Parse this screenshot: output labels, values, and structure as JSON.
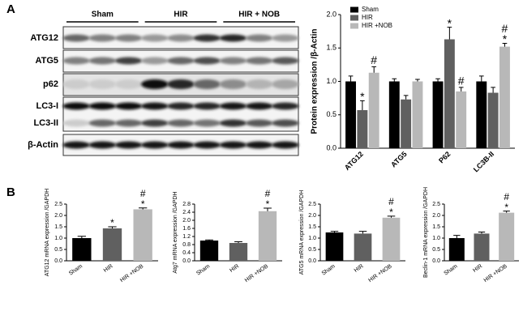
{
  "panel_labels": [
    "A",
    "B"
  ],
  "blot": {
    "groups": [
      "Sham",
      "HIR",
      "HIR + NOB"
    ],
    "rows": [
      "ATG12",
      "ATG5",
      "p62",
      "LC3-I",
      "LC3-II",
      "β-Actin"
    ]
  },
  "chart_data": [
    {
      "type": "grouped-bar",
      "ylabel": "Protein expression /β-Actin",
      "categories": [
        "ATG12",
        "ATG5",
        "P62",
        "LC3B-II"
      ],
      "series": [
        {
          "name": "Sham",
          "color": "#000000",
          "values": [
            1.0,
            1.0,
            1.0,
            1.0
          ],
          "errors": [
            0.08,
            0.04,
            0.04,
            0.08
          ]
        },
        {
          "name": "HIR",
          "color": "#606060",
          "values": [
            0.57,
            0.73,
            1.63,
            0.83
          ],
          "errors": [
            0.14,
            0.06,
            0.18,
            0.08
          ]
        },
        {
          "name": "HIR +NOB",
          "color": "#b8b8b8",
          "values": [
            1.13,
            1.0,
            0.85,
            1.52
          ],
          "errors": [
            0.09,
            0.03,
            0.06,
            0.05
          ]
        }
      ],
      "ylim": [
        0,
        2.0
      ],
      "yticks": [
        {
          "value": 0,
          "label": "0.0"
        },
        0.5,
        {
          "value": 1,
          "label": "1.0"
        },
        1.5,
        {
          "value": 2,
          "label": "2.0"
        }
      ],
      "legend": "top-left",
      "annotations": [
        {
          "category": "ATG12",
          "series": "HIR",
          "text": "*"
        },
        {
          "category": "ATG12",
          "series": "HIR +NOB",
          "text": "#"
        },
        {
          "category": "P62",
          "series": "HIR",
          "text": "*"
        },
        {
          "category": "P62",
          "series": "HIR +NOB",
          "text": "#"
        },
        {
          "category": "LC3B-II",
          "series": "HIR +NOB",
          "text": "*"
        },
        {
          "category": "LC3B-II",
          "series": "HIR +NOB",
          "text": "#"
        }
      ]
    },
    {
      "type": "bar",
      "ylabel": "ATG12 mRNA expression /GAPDH",
      "categories": [
        "Sham",
        "HIR",
        "HIR +NOB"
      ],
      "values": [
        1.0,
        1.43,
        2.27
      ],
      "errors": [
        0.08,
        0.07,
        0.06
      ],
      "colors": [
        "#000000",
        "#606060",
        "#b8b8b8"
      ],
      "ylim": [
        0,
        2.5
      ],
      "yticks": [
        {
          "value": 0,
          "label": "0.0"
        },
        0.5,
        {
          "value": 1,
          "label": "1.0"
        },
        1.5,
        {
          "value": 2,
          "label": "2.0"
        },
        2.5
      ],
      "annotations": [
        {
          "category": "HIR",
          "text": "*"
        },
        {
          "category": "HIR +NOB",
          "text": "*"
        },
        {
          "category": "HIR +NOB",
          "text": "#"
        }
      ]
    },
    {
      "type": "bar",
      "ylabel": "Atg7 mRNA expression /GAPDH",
      "categories": [
        "Sham",
        "HIR",
        "HIR +NOB"
      ],
      "values": [
        1.0,
        0.88,
        2.45
      ],
      "errors": [
        0.03,
        0.06,
        0.15
      ],
      "colors": [
        "#000000",
        "#606060",
        "#b8b8b8"
      ],
      "ylim": [
        0,
        2.8
      ],
      "yticks": [
        {
          "value": 0,
          "label": "0.0"
        },
        0.4,
        0.8,
        1.2,
        1.6,
        {
          "value": 2,
          "label": "2.0"
        },
        2.4,
        2.8
      ],
      "annotations": [
        {
          "category": "HIR +NOB",
          "text": "*"
        },
        {
          "category": "HIR +NOB",
          "text": "#"
        }
      ]
    },
    {
      "type": "bar",
      "ylabel": "ATG5 mRNA expression /GAPDH",
      "categories": [
        "Sham",
        "HIR",
        "HIR +NOB"
      ],
      "values": [
        1.25,
        1.2,
        1.9
      ],
      "errors": [
        0.05,
        0.1,
        0.07
      ],
      "colors": [
        "#000000",
        "#606060",
        "#b8b8b8"
      ],
      "ylim": [
        0,
        2.5
      ],
      "yticks": [
        {
          "value": 0,
          "label": "0.0"
        },
        0.5,
        {
          "value": 1,
          "label": "1.0"
        },
        1.5,
        {
          "value": 2,
          "label": "2.0"
        },
        2.5
      ],
      "annotations": [
        {
          "category": "HIR +NOB",
          "text": "*"
        },
        {
          "category": "HIR +NOB",
          "text": "#"
        }
      ]
    },
    {
      "type": "bar",
      "ylabel": "Beclin-1 mRNA expression /GAPDH",
      "categories": [
        "Sham",
        "HIR",
        "HIR +NOB"
      ],
      "values": [
        1.0,
        1.2,
        2.12
      ],
      "errors": [
        0.12,
        0.07,
        0.07
      ],
      "colors": [
        "#000000",
        "#606060",
        "#b8b8b8"
      ],
      "ylim": [
        0,
        2.5
      ],
      "yticks": [
        {
          "value": 0,
          "label": "0.0"
        },
        0.5,
        {
          "value": 1,
          "label": "1.0"
        },
        1.5,
        {
          "value": 2,
          "label": "2.0"
        },
        2.5
      ],
      "annotations": [
        {
          "category": "HIR +NOB",
          "text": "*"
        },
        {
          "category": "HIR +NOB",
          "text": "#"
        }
      ]
    }
  ]
}
